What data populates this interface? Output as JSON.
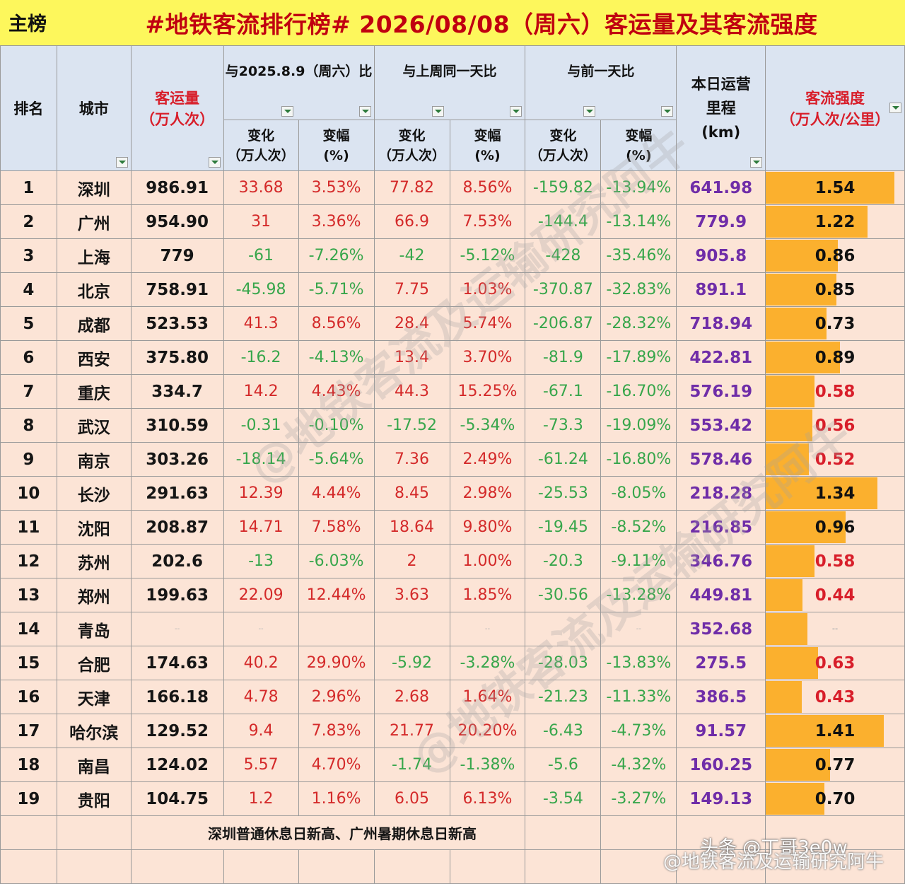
{
  "header": {
    "tag": "主榜",
    "title": "#地铁客流排行榜# 2026/08/08（周六）客运量及其客流强度"
  },
  "columns": {
    "rank": "排名",
    "city": "城市",
    "volume_line1": "客运量",
    "volume_line2": "（万人次）",
    "group_yoy": "与2025.8.9（周六）比",
    "group_wow": "与上周同一天比",
    "group_dod": "与前一天比",
    "change_line1": "变化",
    "change_line2": "（万人次）",
    "pct_line1": "变幅",
    "pct_line2": "(%)",
    "mileage_line1": "本日运营",
    "mileage_line2": "里程",
    "mileage_line3": "(km)",
    "intensity_line1": "客流强度",
    "intensity_line2": "（万人次/公里）"
  },
  "rows": [
    {
      "rank": "1",
      "city": "深圳",
      "volume": "986.91",
      "yoy_change": "33.68",
      "yoy_pct": "3.53%",
      "wow_change": "77.82",
      "wow_pct": "8.56%",
      "dod_change": "-159.82",
      "dod_pct": "-13.94%",
      "mileage": "641.98",
      "intensity": "1.54",
      "intensity_value": 1.54
    },
    {
      "rank": "2",
      "city": "广州",
      "volume": "954.90",
      "yoy_change": "31",
      "yoy_pct": "3.36%",
      "wow_change": "66.9",
      "wow_pct": "7.53%",
      "dod_change": "-144.4",
      "dod_pct": "-13.14%",
      "mileage": "779.9",
      "intensity": "1.22",
      "intensity_value": 1.22
    },
    {
      "rank": "3",
      "city": "上海",
      "volume": "779",
      "yoy_change": "-61",
      "yoy_pct": "-7.26%",
      "wow_change": "-42",
      "wow_pct": "-5.12%",
      "dod_change": "-428",
      "dod_pct": "-35.46%",
      "mileage": "905.8",
      "intensity": "0.86",
      "intensity_value": 0.86
    },
    {
      "rank": "4",
      "city": "北京",
      "volume": "758.91",
      "yoy_change": "-45.98",
      "yoy_pct": "-5.71%",
      "wow_change": "7.75",
      "wow_pct": "1.03%",
      "dod_change": "-370.87",
      "dod_pct": "-32.83%",
      "mileage": "891.1",
      "intensity": "0.85",
      "intensity_value": 0.85
    },
    {
      "rank": "5",
      "city": "成都",
      "volume": "523.53",
      "yoy_change": "41.3",
      "yoy_pct": "8.56%",
      "wow_change": "28.4",
      "wow_pct": "5.74%",
      "dod_change": "-206.87",
      "dod_pct": "-28.32%",
      "mileage": "718.94",
      "intensity": "0.73",
      "intensity_value": 0.73
    },
    {
      "rank": "6",
      "city": "西安",
      "volume": "375.80",
      "yoy_change": "-16.2",
      "yoy_pct": "-4.13%",
      "wow_change": "13.4",
      "wow_pct": "3.70%",
      "dod_change": "-81.9",
      "dod_pct": "-17.89%",
      "mileage": "422.81",
      "intensity": "0.89",
      "intensity_value": 0.89
    },
    {
      "rank": "7",
      "city": "重庆",
      "volume": "334.7",
      "yoy_change": "14.2",
      "yoy_pct": "4.43%",
      "wow_change": "44.3",
      "wow_pct": "15.25%",
      "dod_change": "-67.1",
      "dod_pct": "-16.70%",
      "mileage": "576.19",
      "intensity": "0.58",
      "intensity_value": 0.58
    },
    {
      "rank": "8",
      "city": "武汉",
      "volume": "310.59",
      "yoy_change": "-0.31",
      "yoy_pct": "-0.10%",
      "wow_change": "-17.52",
      "wow_pct": "-5.34%",
      "dod_change": "-73.3",
      "dod_pct": "-19.09%",
      "mileage": "553.42",
      "intensity": "0.56",
      "intensity_value": 0.56
    },
    {
      "rank": "9",
      "city": "南京",
      "volume": "303.26",
      "yoy_change": "-18.14",
      "yoy_pct": "-5.64%",
      "wow_change": "7.36",
      "wow_pct": "2.49%",
      "dod_change": "-61.24",
      "dod_pct": "-16.80%",
      "mileage": "578.46",
      "intensity": "0.52",
      "intensity_value": 0.52
    },
    {
      "rank": "10",
      "city": "长沙",
      "volume": "291.63",
      "yoy_change": "12.39",
      "yoy_pct": "4.44%",
      "wow_change": "8.45",
      "wow_pct": "2.98%",
      "dod_change": "-25.53",
      "dod_pct": "-8.05%",
      "mileage": "218.28",
      "intensity": "1.34",
      "intensity_value": 1.34
    },
    {
      "rank": "11",
      "city": "沈阳",
      "volume": "208.87",
      "yoy_change": "14.71",
      "yoy_pct": "7.58%",
      "wow_change": "18.64",
      "wow_pct": "9.80%",
      "dod_change": "-19.45",
      "dod_pct": "-8.52%",
      "mileage": "216.85",
      "intensity": "0.96",
      "intensity_value": 0.96
    },
    {
      "rank": "12",
      "city": "苏州",
      "volume": "202.6",
      "yoy_change": "-13",
      "yoy_pct": "-6.03%",
      "wow_change": "2",
      "wow_pct": "1.00%",
      "dod_change": "-20.3",
      "dod_pct": "-9.11%",
      "mileage": "346.76",
      "intensity": "0.58",
      "intensity_value": 0.58
    },
    {
      "rank": "13",
      "city": "郑州",
      "volume": "199.63",
      "yoy_change": "22.09",
      "yoy_pct": "12.44%",
      "wow_change": "3.63",
      "wow_pct": "1.85%",
      "dod_change": "-30.56",
      "dod_pct": "-13.28%",
      "mileage": "449.81",
      "intensity": "0.44",
      "intensity_value": 0.44
    },
    {
      "rank": "14",
      "city": "青岛",
      "volume": "--",
      "yoy_change": "--",
      "yoy_pct": "",
      "wow_change": "",
      "wow_pct": "--",
      "dod_change": "",
      "dod_pct": "--",
      "mileage": "352.68",
      "intensity": "--",
      "intensity_value": 0.5
    },
    {
      "rank": "15",
      "city": "合肥",
      "volume": "174.63",
      "yoy_change": "40.2",
      "yoy_pct": "29.90%",
      "wow_change": "-5.92",
      "wow_pct": "-3.28%",
      "dod_change": "-28.03",
      "dod_pct": "-13.83%",
      "mileage": "275.5",
      "intensity": "0.63",
      "intensity_value": 0.63
    },
    {
      "rank": "16",
      "city": "天津",
      "volume": "166.18",
      "yoy_change": "4.78",
      "yoy_pct": "2.96%",
      "wow_change": "2.68",
      "wow_pct": "1.64%",
      "dod_change": "-21.23",
      "dod_pct": "-11.33%",
      "mileage": "386.5",
      "intensity": "0.43",
      "intensity_value": 0.43
    },
    {
      "rank": "17",
      "city": "哈尔滨",
      "volume": "129.52",
      "yoy_change": "9.4",
      "yoy_pct": "7.83%",
      "wow_change": "21.77",
      "wow_pct": "20.20%",
      "dod_change": "-6.43",
      "dod_pct": "-4.73%",
      "mileage": "91.57",
      "intensity": "1.41",
      "intensity_value": 1.41
    },
    {
      "rank": "18",
      "city": "南昌",
      "volume": "124.02",
      "yoy_change": "5.57",
      "yoy_pct": "4.70%",
      "wow_change": "-1.74",
      "wow_pct": "-1.38%",
      "dod_change": "-5.6",
      "dod_pct": "-4.32%",
      "mileage": "160.25",
      "intensity": "0.77",
      "intensity_value": 0.77
    },
    {
      "rank": "19",
      "city": "贵阳",
      "volume": "104.75",
      "yoy_change": "1.2",
      "yoy_pct": "1.16%",
      "wow_change": "6.05",
      "wow_pct": "6.13%",
      "dod_change": "-3.54",
      "dod_pct": "-3.27%",
      "mileage": "149.13",
      "intensity": "0.70",
      "intensity_value": 0.7
    }
  ],
  "intensity_max": 1.54,
  "intensity_colors": {
    "high": "#111111",
    "low": "#d81e2a",
    "threshold": 0.7
  },
  "footer": {
    "note": "深圳普通休息日新高、广州暑期休息日新高"
  },
  "watermarks": {
    "diagonal": "@地铁客流及运输研究阿牛",
    "toutiao": "头条 @丁哥3e0w",
    "weibo": "@地铁客流及运输研究阿牛"
  }
}
